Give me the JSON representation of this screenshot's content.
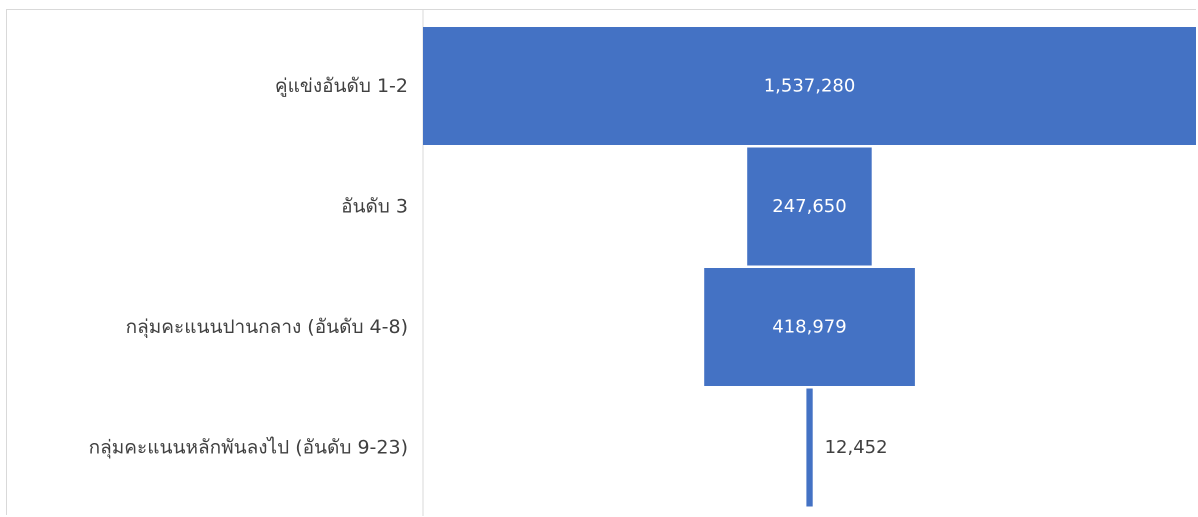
{
  "chart_data": {
    "type": "bar",
    "subtype": "funnel",
    "title": "",
    "xlabel": "",
    "ylabel": "",
    "categories": [
      "คู่แข่งอันดับ 1-2",
      "อันดับ 3",
      "กลุ่มคะแนนปานกลาง (อันดับ 4-8)",
      "กลุ่มคะแนนหลักพันลงไป (อันดับ 9-23)"
    ],
    "values": [
      1537280,
      247650,
      418979,
      12452
    ],
    "value_labels": [
      "1,537,280",
      "247,650",
      "418,979",
      "12,452"
    ],
    "bar_color": "#4472c4",
    "inside_label_color": "#ffffff",
    "outside_label_color": "#404040",
    "grid": false,
    "legend": "none"
  }
}
